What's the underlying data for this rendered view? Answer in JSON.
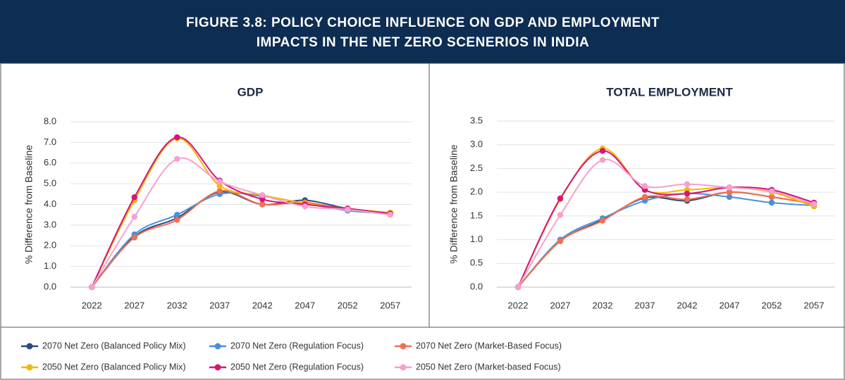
{
  "header": {
    "title": [
      "FIGURE 3.8:  POLICY CHOICE INFLUENCE ON GDP AND EMPLOYMENT",
      "IMPACTS IN THE NET ZERO SCENERIOS IN INDIA"
    ]
  },
  "chart_data": [
    {
      "type": "line",
      "title": "GDP",
      "y_label": "% Difference from Baseline",
      "categories": [
        "2022",
        "2027",
        "2032",
        "2037",
        "2042",
        "2047",
        "2052",
        "2057"
      ],
      "ylim": [
        0,
        8
      ],
      "yticks": [
        {
          "value": 0,
          "label": "0.0"
        },
        {
          "value": 1,
          "label": "1.0"
        },
        {
          "value": 2,
          "label": "2.0"
        },
        {
          "value": 3,
          "label": "3.0"
        },
        {
          "value": 4,
          "label": "4.0"
        },
        {
          "value": 5,
          "label": "5.0"
        },
        {
          "value": 6,
          "label": "6.0"
        },
        {
          "value": 7,
          "label": "7.0"
        },
        {
          "value": 8,
          "label": "8.0"
        }
      ],
      "grid": true,
      "series": [
        {
          "name": "2070 Net Zero (Balanced Policy Mix)",
          "color": "#2b4a7e",
          "values": [
            0,
            2.45,
            3.35,
            4.6,
            4.0,
            4.2,
            3.8,
            3.6
          ]
        },
        {
          "name": "2070 Net Zero (Regulation Focus)",
          "color": "#4a90d9",
          "values": [
            0,
            2.55,
            3.5,
            4.5,
            4.4,
            4.05,
            3.7,
            3.55
          ]
        },
        {
          "name": "2070 Net Zero (Market-Based Focus)",
          "color": "#f07050",
          "values": [
            0,
            2.4,
            3.25,
            4.65,
            4.0,
            4.1,
            3.75,
            3.6
          ]
        },
        {
          "name": "2050 Net Zero (Balanced Policy Mix)",
          "color": "#f5b800",
          "values": [
            0,
            4.2,
            7.2,
            4.9,
            4.45,
            4.05,
            3.8,
            3.6
          ]
        },
        {
          "name": "2050 Net Zero (Regulation Focus)",
          "color": "#d6147a",
          "values": [
            0,
            4.35,
            7.25,
            5.15,
            4.25,
            4.0,
            3.8,
            3.55
          ]
        },
        {
          "name": "2050 Net Zero (Market-based Focus)",
          "color": "#f5a0d0",
          "values": [
            0,
            3.4,
            6.2,
            5.1,
            4.45,
            3.9,
            3.75,
            3.5
          ]
        }
      ]
    },
    {
      "type": "line",
      "title": "TOTAL EMPLOYMENT",
      "y_label": "% Difference from Baseline",
      "categories": [
        "2022",
        "2027",
        "2032",
        "2037",
        "2042",
        "2047",
        "2052",
        "2057"
      ],
      "ylim": [
        0,
        3.5
      ],
      "yticks": [
        {
          "value": 0,
          "label": "0.0"
        },
        {
          "value": 0.5,
          "label": "0.5"
        },
        {
          "value": 1,
          "label": "1.0"
        },
        {
          "value": 1.5,
          "label": "1.5"
        },
        {
          "value": 2,
          "label": "2.0"
        },
        {
          "value": 2.5,
          "label": "2.5"
        },
        {
          "value": 3,
          "label": "3.0"
        },
        {
          "value": 3.5,
          "label": "3.5"
        }
      ],
      "grid": true,
      "series": [
        {
          "name": "2070 Net Zero (Balanced Policy Mix)",
          "color": "#2b4a7e",
          "values": [
            0,
            0.97,
            1.42,
            1.88,
            1.82,
            2.0,
            1.9,
            1.75
          ]
        },
        {
          "name": "2070 Net Zero (Regulation Focus)",
          "color": "#4a90d9",
          "values": [
            0,
            1.0,
            1.45,
            1.82,
            1.97,
            1.9,
            1.78,
            1.72
          ]
        },
        {
          "name": "2070 Net Zero (Market-Based Focus)",
          "color": "#f07050",
          "values": [
            0,
            0.97,
            1.4,
            1.9,
            1.85,
            2.0,
            1.9,
            1.75
          ]
        },
        {
          "name": "2050 Net Zero (Balanced Policy Mix)",
          "color": "#f5b800",
          "values": [
            0,
            1.85,
            2.92,
            2.05,
            2.05,
            2.1,
            2.0,
            1.7
          ]
        },
        {
          "name": "2050 Net Zero (Regulation Focus)",
          "color": "#d6147a",
          "values": [
            0,
            1.87,
            2.87,
            2.05,
            1.97,
            2.1,
            2.05,
            1.78
          ]
        },
        {
          "name": "2050 Net Zero (Market-based Focus)",
          "color": "#f5a0d0",
          "values": [
            0,
            1.52,
            2.68,
            2.13,
            2.17,
            2.1,
            2.02,
            1.75
          ]
        }
      ]
    }
  ]
}
